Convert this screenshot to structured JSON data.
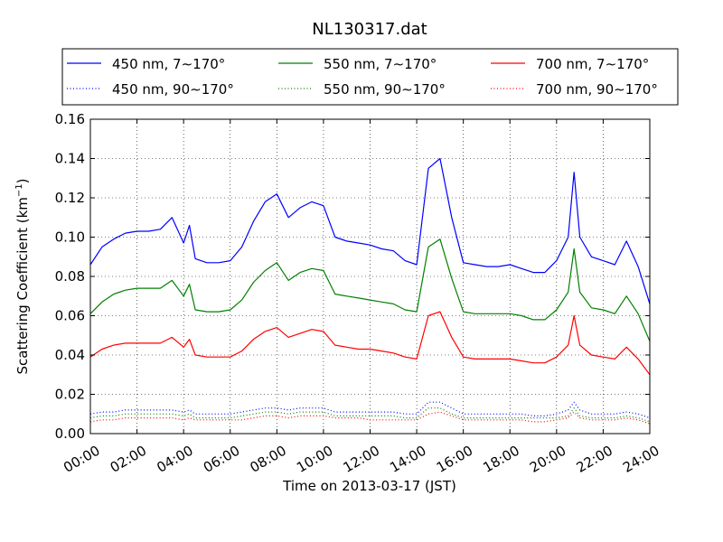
{
  "chart_data": {
    "type": "line",
    "title": "NL130317.dat",
    "xlabel": "Time on 2013-03-17 (JST)",
    "ylabel": "Scattering Coefficient (km",
    "ylabel_sup": "−1",
    "ylabel_suffix": ")",
    "xlim": [
      "00:00",
      "24:00"
    ],
    "ylim": [
      0.0,
      0.16
    ],
    "grid": true,
    "legend_placement": "top",
    "x_ticks": [
      "00:00",
      "02:00",
      "04:00",
      "06:00",
      "08:00",
      "10:00",
      "12:00",
      "14:00",
      "16:00",
      "18:00",
      "20:00",
      "22:00",
      "24:00"
    ],
    "y_ticks": [
      "0.00",
      "0.02",
      "0.04",
      "0.06",
      "0.08",
      "0.10",
      "0.12",
      "0.14",
      "0.16"
    ],
    "x": [
      "00:00",
      "00:30",
      "01:00",
      "01:30",
      "02:00",
      "02:30",
      "03:00",
      "03:30",
      "04:00",
      "04:15",
      "04:30",
      "05:00",
      "05:30",
      "06:00",
      "06:30",
      "07:00",
      "07:30",
      "08:00",
      "08:30",
      "09:00",
      "09:30",
      "10:00",
      "10:30",
      "11:00",
      "11:30",
      "12:00",
      "12:30",
      "13:00",
      "13:30",
      "14:00",
      "14:30",
      "15:00",
      "15:30",
      "16:00",
      "16:30",
      "17:00",
      "17:30",
      "18:00",
      "18:30",
      "19:00",
      "19:30",
      "20:00",
      "20:30",
      "20:45",
      "21:00",
      "21:30",
      "22:00",
      "22:30",
      "23:00",
      "23:30",
      "24:00"
    ],
    "series": [
      {
        "name": "450 nm, 7∼170°",
        "color": "#0000ff",
        "style": "solid",
        "values": [
          0.086,
          0.095,
          0.099,
          0.102,
          0.103,
          0.103,
          0.104,
          0.11,
          0.097,
          0.106,
          0.089,
          0.087,
          0.087,
          0.088,
          0.095,
          0.108,
          0.118,
          0.122,
          0.11,
          0.115,
          0.118,
          0.116,
          0.1,
          0.098,
          0.097,
          0.096,
          0.094,
          0.093,
          0.088,
          0.086,
          0.135,
          0.14,
          0.11,
          0.087,
          0.086,
          0.085,
          0.085,
          0.086,
          0.084,
          0.082,
          0.082,
          0.088,
          0.1,
          0.133,
          0.1,
          0.09,
          0.088,
          0.086,
          0.098,
          0.085,
          0.066
        ]
      },
      {
        "name": "550 nm, 7∼170°",
        "color": "#008000",
        "style": "solid",
        "values": [
          0.061,
          0.067,
          0.071,
          0.073,
          0.074,
          0.074,
          0.074,
          0.078,
          0.07,
          0.076,
          0.063,
          0.062,
          0.062,
          0.063,
          0.068,
          0.077,
          0.083,
          0.087,
          0.078,
          0.082,
          0.084,
          0.083,
          0.071,
          0.07,
          0.069,
          0.068,
          0.067,
          0.066,
          0.063,
          0.062,
          0.095,
          0.099,
          0.079,
          0.062,
          0.061,
          0.061,
          0.061,
          0.061,
          0.06,
          0.058,
          0.058,
          0.063,
          0.072,
          0.094,
          0.072,
          0.064,
          0.063,
          0.061,
          0.07,
          0.061,
          0.047
        ]
      },
      {
        "name": "700 nm, 7∼170°",
        "color": "#ff0000",
        "style": "solid",
        "values": [
          0.039,
          0.043,
          0.045,
          0.046,
          0.046,
          0.046,
          0.046,
          0.049,
          0.044,
          0.048,
          0.04,
          0.039,
          0.039,
          0.039,
          0.042,
          0.048,
          0.052,
          0.054,
          0.049,
          0.051,
          0.053,
          0.052,
          0.045,
          0.044,
          0.043,
          0.043,
          0.042,
          0.041,
          0.039,
          0.038,
          0.06,
          0.062,
          0.049,
          0.039,
          0.038,
          0.038,
          0.038,
          0.038,
          0.037,
          0.036,
          0.036,
          0.039,
          0.045,
          0.06,
          0.045,
          0.04,
          0.039,
          0.038,
          0.044,
          0.038,
          0.03
        ]
      },
      {
        "name": "450 nm, 90∼170°",
        "color": "#0000ff",
        "style": "dotted",
        "values": [
          0.01,
          0.011,
          0.011,
          0.012,
          0.012,
          0.012,
          0.012,
          0.012,
          0.011,
          0.012,
          0.01,
          0.01,
          0.01,
          0.01,
          0.011,
          0.012,
          0.013,
          0.013,
          0.012,
          0.013,
          0.013,
          0.013,
          0.011,
          0.011,
          0.011,
          0.011,
          0.011,
          0.011,
          0.01,
          0.01,
          0.016,
          0.016,
          0.013,
          0.01,
          0.01,
          0.01,
          0.01,
          0.01,
          0.01,
          0.009,
          0.009,
          0.01,
          0.012,
          0.016,
          0.012,
          0.01,
          0.01,
          0.01,
          0.011,
          0.01,
          0.008
        ]
      },
      {
        "name": "550 nm, 90∼170°",
        "color": "#008000",
        "style": "dotted",
        "values": [
          0.008,
          0.009,
          0.009,
          0.01,
          0.01,
          0.01,
          0.01,
          0.01,
          0.009,
          0.01,
          0.008,
          0.008,
          0.008,
          0.008,
          0.009,
          0.01,
          0.011,
          0.011,
          0.01,
          0.011,
          0.011,
          0.011,
          0.009,
          0.009,
          0.009,
          0.009,
          0.009,
          0.009,
          0.008,
          0.008,
          0.013,
          0.013,
          0.01,
          0.008,
          0.008,
          0.008,
          0.008,
          0.008,
          0.008,
          0.008,
          0.008,
          0.008,
          0.009,
          0.013,
          0.009,
          0.008,
          0.008,
          0.008,
          0.009,
          0.008,
          0.006
        ]
      },
      {
        "name": "700 nm, 90∼170°",
        "color": "#ff0000",
        "style": "dotted",
        "values": [
          0.006,
          0.007,
          0.007,
          0.008,
          0.008,
          0.008,
          0.008,
          0.008,
          0.007,
          0.008,
          0.007,
          0.007,
          0.007,
          0.007,
          0.007,
          0.008,
          0.009,
          0.009,
          0.008,
          0.009,
          0.009,
          0.009,
          0.008,
          0.008,
          0.008,
          0.007,
          0.007,
          0.007,
          0.007,
          0.007,
          0.01,
          0.011,
          0.009,
          0.007,
          0.007,
          0.007,
          0.007,
          0.007,
          0.007,
          0.006,
          0.006,
          0.007,
          0.008,
          0.011,
          0.008,
          0.007,
          0.007,
          0.007,
          0.008,
          0.007,
          0.005
        ]
      }
    ],
    "legend_order": [
      0,
      1,
      2,
      3,
      4,
      5
    ]
  }
}
